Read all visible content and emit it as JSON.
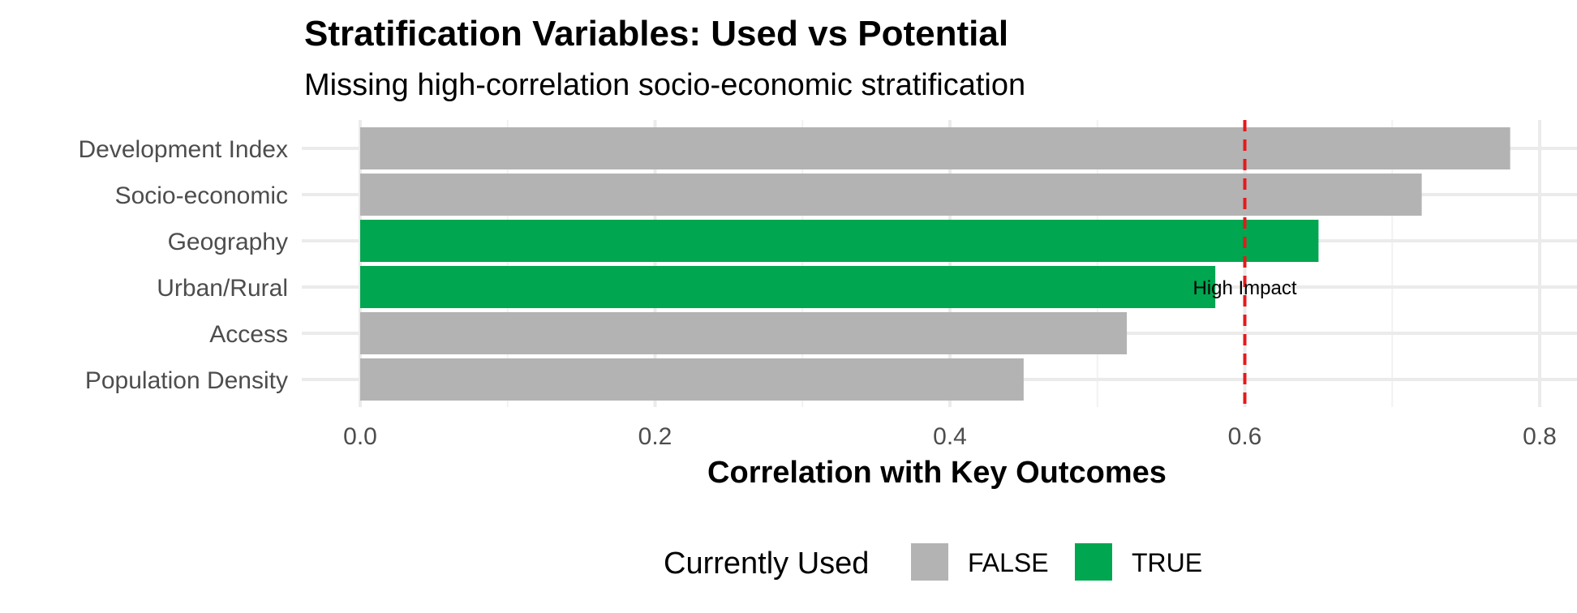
{
  "chart_data": {
    "type": "bar",
    "orientation": "horizontal",
    "title": "Stratification Variables: Used vs Potential",
    "subtitle": "Missing high-correlation socio-economic stratification",
    "xlabel": "Correlation with Key Outcomes",
    "ylabel": "",
    "xlim": [
      0,
      0.8
    ],
    "xticks": [
      "0.0",
      "0.2",
      "0.4",
      "0.6",
      "0.8"
    ],
    "xtick_values": [
      0.0,
      0.2,
      0.4,
      0.6,
      0.8
    ],
    "grid": true,
    "categories": [
      "Development Index",
      "Socio-economic",
      "Geography",
      "Urban/Rural",
      "Access",
      "Population Density"
    ],
    "values": [
      0.78,
      0.72,
      0.65,
      0.58,
      0.52,
      0.45
    ],
    "currently_used": [
      "FALSE",
      "FALSE",
      "TRUE",
      "TRUE",
      "FALSE",
      "FALSE"
    ],
    "reference_line": {
      "x": 0.6,
      "style": "dashed",
      "color": "#e41a1c",
      "label": "High Impact"
    },
    "legend": {
      "title": "Currently Used",
      "placement": "bottom",
      "entries": [
        {
          "label": "FALSE",
          "color": "#b3b3b3"
        },
        {
          "label": "TRUE",
          "color": "#00a650"
        }
      ]
    }
  }
}
